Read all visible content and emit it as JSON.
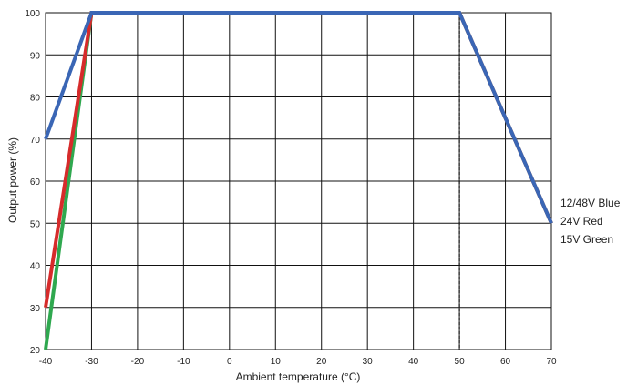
{
  "chart_data": {
    "type": "line",
    "title": "",
    "xlabel": "Ambient temperature (°C)",
    "ylabel": "Output power (%)",
    "xlim": [
      -40,
      70
    ],
    "ylim": [
      20,
      100
    ],
    "xticks": [
      -40,
      -30,
      -20,
      -10,
      0,
      10,
      20,
      30,
      40,
      50,
      60,
      70
    ],
    "yticks": [
      20,
      30,
      40,
      50,
      60,
      70,
      80,
      90,
      100
    ],
    "xtick_labels": [
      "-40",
      "-30",
      "-20",
      "-10",
      "0",
      "10",
      "20",
      "30",
      "40",
      "50",
      "60",
      "70"
    ],
    "ytick_labels": [
      "20",
      "30",
      "40",
      "50",
      "60",
      "70",
      "80",
      "90",
      "100"
    ],
    "grid": true,
    "legend_position": "right",
    "vline": {
      "x": 50,
      "style": "dashed"
    },
    "series": [
      {
        "name": "15V Green",
        "color": "#2fa84f",
        "x": [
          -40,
          -30,
          50,
          70
        ],
        "y": [
          20,
          100,
          100,
          50
        ]
      },
      {
        "name": "24V Red",
        "color": "#d62b2b",
        "x": [
          -40,
          -30,
          50,
          70
        ],
        "y": [
          30,
          100,
          100,
          50
        ]
      },
      {
        "name": "12/48V Blue",
        "color": "#3a66b5",
        "x": [
          -40,
          -30,
          50,
          70
        ],
        "y": [
          70,
          100,
          100,
          50
        ]
      }
    ],
    "legend": [
      "12/48V Blue",
      "24V Red",
      "15V Green"
    ]
  }
}
